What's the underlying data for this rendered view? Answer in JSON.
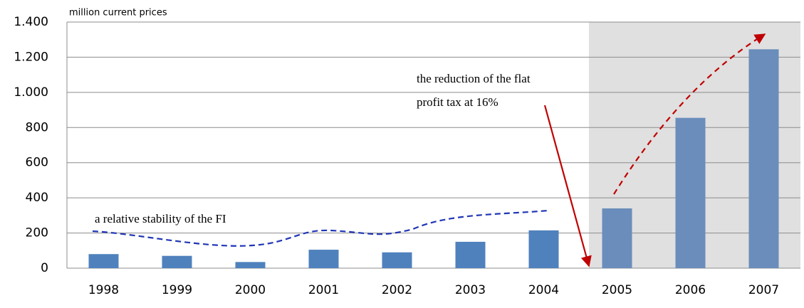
{
  "chart_data": {
    "type": "bar",
    "categories": [
      "1998",
      "1999",
      "2000",
      "2001",
      "2002",
      "2003",
      "2004",
      "2005",
      "2006",
      "2007"
    ],
    "values": [
      80,
      70,
      35,
      105,
      90,
      150,
      215,
      340,
      855,
      1245
    ],
    "colors": [
      "#4f81bd",
      "#4f81bd",
      "#4f81bd",
      "#4f81bd",
      "#4f81bd",
      "#4f81bd",
      "#4f81bd",
      "#6a8dbb",
      "#6a8dbb",
      "#6a8dbb"
    ],
    "ylim": [
      0,
      1400
    ],
    "yticks": [
      0,
      200,
      400,
      600,
      800,
      {
        "value": 1000,
        "label": "1.000"
      },
      {
        "value": 1200,
        "label": "1.200"
      },
      {
        "value": 1400,
        "label": "1.400"
      }
    ],
    "grid": true,
    "shade": {
      "from": 7,
      "color": "#e0e0e0"
    },
    "annotations": [
      {
        "lines": [
          "million current prices"
        ]
      },
      {
        "lines": [
          "the reduction of the flat",
          "profit tax at 16%"
        ]
      },
      {
        "lines": [
          "a relative stability of the FI"
        ]
      }
    ]
  }
}
